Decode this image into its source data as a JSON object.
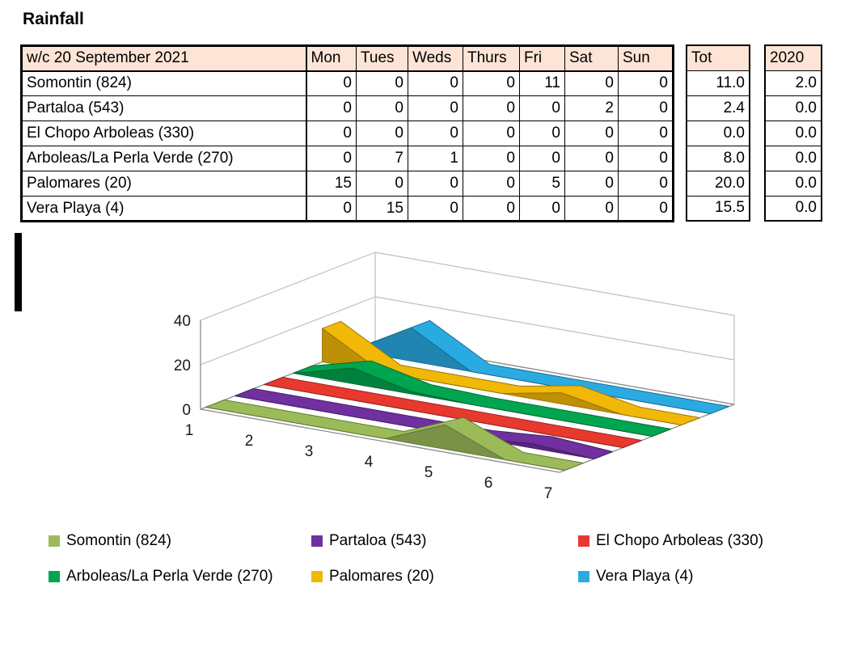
{
  "title": "Rainfall",
  "table": {
    "week_label": "w/c  20 September 2021",
    "day_headers": [
      "Mon",
      "Tues",
      "Weds",
      "Thurs",
      "Fri",
      "Sat",
      "Sun"
    ],
    "tot_header": "Tot",
    "prev_year_header": "2020",
    "rows": [
      {
        "name": "Somontin (824)",
        "days": [
          "0",
          "0",
          "0",
          "0",
          "11",
          "0",
          "0"
        ],
        "tot": "11.0",
        "prev": "2.0"
      },
      {
        "name": "Partaloa (543)",
        "days": [
          "0",
          "0",
          "0",
          "0",
          "0",
          "2",
          "0"
        ],
        "tot": "2.4",
        "prev": "0.0"
      },
      {
        "name": "El Chopo Arboleas (330)",
        "days": [
          "0",
          "0",
          "0",
          "0",
          "0",
          "0",
          "0"
        ],
        "tot": "0.0",
        "prev": "0.0"
      },
      {
        "name": "Arboleas/La Perla Verde (270)",
        "days": [
          "0",
          "7",
          "1",
          "0",
          "0",
          "0",
          "0"
        ],
        "tot": "8.0",
        "prev": "0.0"
      },
      {
        "name": "Palomares (20)",
        "days": [
          "15",
          "0",
          "0",
          "0",
          "5",
          "0",
          "0"
        ],
        "tot": "20.0",
        "prev": "0.0"
      },
      {
        "name": "Vera Playa (4)",
        "days": [
          "0",
          "15",
          "0",
          "0",
          "0",
          "0",
          "0"
        ],
        "tot": "15.5",
        "prev": "0.0"
      }
    ]
  },
  "chart_data": {
    "type": "area",
    "style": "3d-area",
    "categories": [
      "1",
      "2",
      "3",
      "4",
      "5",
      "6",
      "7"
    ],
    "series": [
      {
        "name": "Somontin (824)",
        "color": "#9BBB59",
        "values": [
          0,
          0,
          0,
          0,
          11,
          0,
          0
        ]
      },
      {
        "name": "Partaloa (543)",
        "color": "#7030A0",
        "values": [
          0,
          0,
          0,
          0,
          0,
          2,
          0
        ]
      },
      {
        "name": "El Chopo Arboleas (330)",
        "color": "#E8392F",
        "values": [
          0,
          0,
          0,
          0,
          0,
          0,
          0
        ]
      },
      {
        "name": "Arboleas/La Perla Verde (270)",
        "color": "#00A550",
        "values": [
          0,
          7,
          1,
          0,
          0,
          0,
          0
        ]
      },
      {
        "name": "Palomares (20)",
        "color": "#F2B807",
        "values": [
          15,
          0,
          0,
          0,
          5,
          0,
          0
        ]
      },
      {
        "name": "Vera Playa (4)",
        "color": "#29ABE2",
        "values": [
          0,
          15,
          0,
          0,
          0,
          0,
          0
        ]
      }
    ],
    "y_ticks": [
      0,
      20,
      40
    ],
    "ylim": [
      0,
      45
    ],
    "grid": true,
    "legend_position": "bottom"
  },
  "colors": {
    "header_fill": "#FCE4D6",
    "border": "#000000",
    "gridline": "#BFBFBF",
    "axis_line": "#8C8C8C"
  }
}
